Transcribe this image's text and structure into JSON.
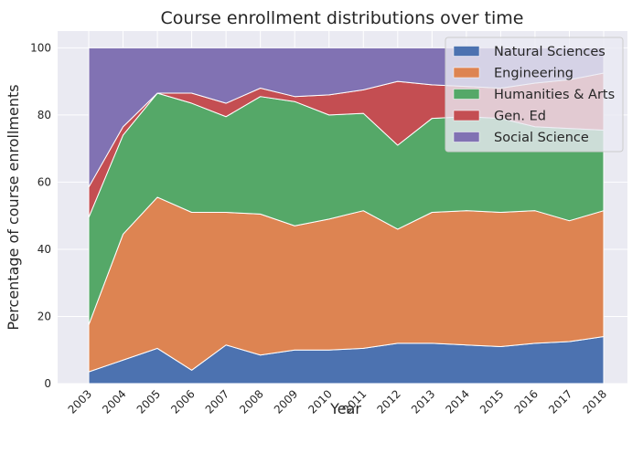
{
  "chart_data": {
    "type": "area",
    "stacked": true,
    "title": "Course enrollment distributions over time",
    "xlabel": "Year",
    "ylabel": "Percentage of course enrollments",
    "ylim": [
      0,
      105
    ],
    "yticks": [
      "0",
      "20",
      "40",
      "60",
      "80",
      "100"
    ],
    "categories": [
      "2003",
      "2004",
      "2005",
      "2006",
      "2007",
      "2008",
      "2009",
      "2010",
      "2011",
      "2012",
      "2013",
      "2014",
      "2015",
      "2016",
      "2017",
      "2018"
    ],
    "grid": true,
    "legend_position": "top-right",
    "series": [
      {
        "name": "Natural Sciences",
        "color": "#4c72b0",
        "values": [
          3.5,
          7,
          10.5,
          4,
          11.5,
          8.5,
          10,
          10,
          10.5,
          12,
          12,
          11.5,
          11,
          12,
          12.5,
          14
        ]
      },
      {
        "name": "Engineering",
        "color": "#dd8452",
        "values": [
          14,
          37.5,
          45,
          47,
          39.5,
          42,
          37,
          39,
          41,
          34,
          39,
          40,
          40,
          39.5,
          36,
          37.5
        ]
      },
      {
        "name": "Humanities & Arts",
        "color": "#55a868",
        "values": [
          32,
          29.5,
          31,
          32.5,
          28.5,
          35,
          37,
          31,
          29,
          25,
          28,
          28,
          28,
          25,
          27.5,
          24
        ]
      },
      {
        "name": "Gen. Ed",
        "color": "#c44e52",
        "values": [
          9,
          2.5,
          0,
          3,
          4,
          2.5,
          1.5,
          6,
          7,
          19,
          10,
          9,
          9,
          13,
          14.5,
          17
        ]
      },
      {
        "name": "Social Science",
        "color": "#8172b3",
        "values": [
          41.5,
          23.5,
          13.5,
          13.5,
          16.5,
          12,
          14.5,
          14,
          12.5,
          10,
          11,
          11.5,
          12,
          10.5,
          9.5,
          7.5
        ]
      }
    ]
  }
}
